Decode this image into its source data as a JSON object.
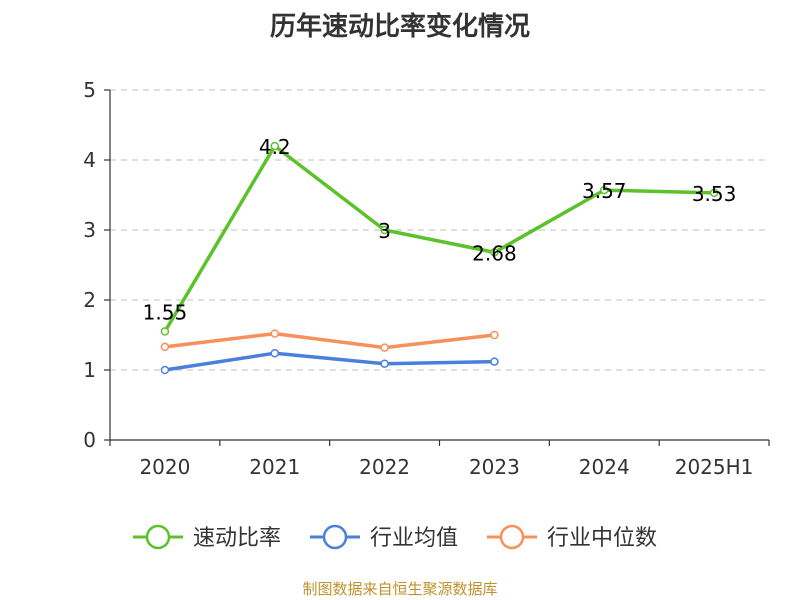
{
  "page": {
    "title": "历年速动比率变化情况",
    "footer": "制图数据来自恒生聚源数据库"
  },
  "chart_data": {
    "type": "line",
    "title": "历年速动比率变化情况",
    "xlabel": "",
    "ylabel": "",
    "categories": [
      "2020",
      "2021",
      "2022",
      "2023",
      "2024",
      "2025H1"
    ],
    "ylim": [
      0,
      5
    ],
    "yticks": [
      0,
      1,
      2,
      3,
      4,
      5
    ],
    "grid": true,
    "legend_position": "bottom",
    "series": [
      {
        "name": "速动比率",
        "color": "#5cc12b",
        "values": [
          1.55,
          4.2,
          3,
          2.68,
          3.57,
          3.53
        ],
        "labels": [
          "1.55",
          "4.2",
          "3",
          "2.68",
          "3.57",
          "3.53"
        ]
      },
      {
        "name": "行业均值",
        "color": "#4a7fdc",
        "values": [
          1.0,
          1.24,
          1.09,
          1.12,
          null,
          null
        ]
      },
      {
        "name": "行业中位数",
        "color": "#f7905a",
        "values": [
          1.33,
          1.52,
          1.32,
          1.5,
          null,
          null
        ]
      }
    ]
  }
}
